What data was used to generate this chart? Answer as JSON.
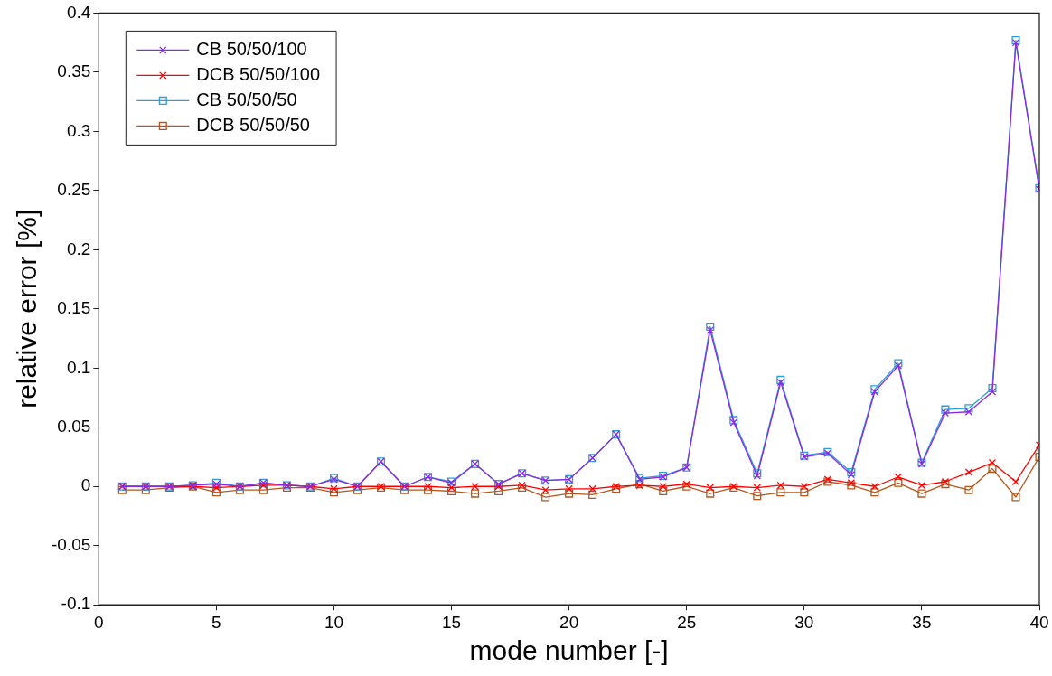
{
  "chart_data": {
    "type": "line",
    "xlabel": "mode number [-]",
    "ylabel": "relative error [%]",
    "x": [
      1,
      2,
      3,
      4,
      5,
      6,
      7,
      8,
      9,
      10,
      11,
      12,
      13,
      14,
      15,
      16,
      17,
      18,
      19,
      20,
      21,
      22,
      23,
      24,
      25,
      26,
      27,
      28,
      29,
      30,
      31,
      32,
      33,
      34,
      35,
      36,
      37,
      38,
      39,
      40
    ],
    "xlim": [
      0,
      40
    ],
    "xticks": [
      0,
      5,
      10,
      15,
      20,
      25,
      30,
      35,
      40
    ],
    "ylim": [
      -0.1,
      0.4
    ],
    "yticks": [
      -0.1,
      -0.05,
      0,
      0.05,
      0.1,
      0.15,
      0.2,
      0.25,
      0.3,
      0.35,
      0.4
    ],
    "grid": false,
    "legend": "top left",
    "line_style": "solid",
    "series": [
      {
        "name": "CB 50/50/100",
        "color": "#8a2be2",
        "marker": "cross",
        "values": [
          0,
          0,
          0,
          0.001,
          0.002,
          0,
          0.003,
          0.001,
          0,
          0.006,
          0,
          0.021,
          0,
          0.008,
          0.003,
          0.019,
          0.002,
          0.011,
          0.005,
          0.006,
          0.024,
          0.044,
          0.006,
          0.008,
          0.016,
          0.132,
          0.054,
          0.009,
          0.088,
          0.025,
          0.028,
          0.01,
          0.08,
          0.102,
          0.019,
          0.062,
          0.063,
          0.08,
          0.375,
          0.251
        ]
      },
      {
        "name": "DCB 50/50/100",
        "color": "#ff0000",
        "marker": "cross",
        "values": [
          0,
          0,
          0,
          0,
          -0.001,
          0,
          0.001,
          0.001,
          0,
          -0.002,
          0,
          0,
          0,
          0,
          -0.001,
          0,
          0,
          0.001,
          -0.003,
          -0.002,
          -0.002,
          0,
          0.001,
          0,
          0.002,
          -0.001,
          0,
          -0.001,
          0.001,
          0,
          0.006,
          0.003,
          0,
          0.008,
          0.001,
          0.004,
          0.012,
          0.02,
          0.004,
          0.035
        ]
      },
      {
        "name": "CB 50/50/50",
        "color": "#2a9fd6",
        "marker": "square",
        "values": [
          0,
          0,
          0,
          0.001,
          0.003,
          0,
          0.003,
          0.001,
          0,
          0.007,
          0,
          0.021,
          0,
          0.008,
          0.004,
          0.019,
          0.002,
          0.011,
          0.005,
          0.006,
          0.024,
          0.044,
          0.007,
          0.009,
          0.016,
          0.135,
          0.056,
          0.011,
          0.09,
          0.026,
          0.029,
          0.012,
          0.082,
          0.104,
          0.02,
          0.065,
          0.066,
          0.083,
          0.377,
          0.252
        ]
      },
      {
        "name": "DCB 50/50/50",
        "color": "#b5561c",
        "marker": "square",
        "values": [
          -0.003,
          -0.003,
          -0.001,
          0,
          -0.005,
          -0.003,
          -0.003,
          -0.001,
          -0.001,
          -0.005,
          -0.003,
          -0.001,
          -0.003,
          -0.003,
          -0.004,
          -0.006,
          -0.004,
          -0.001,
          -0.009,
          -0.006,
          -0.007,
          -0.002,
          0.002,
          -0.004,
          0,
          -0.006,
          -0.001,
          -0.008,
          -0.005,
          -0.005,
          0.004,
          0.001,
          -0.005,
          0.003,
          -0.006,
          0.002,
          -0.003,
          0.015,
          -0.009,
          0.025
        ]
      }
    ]
  }
}
